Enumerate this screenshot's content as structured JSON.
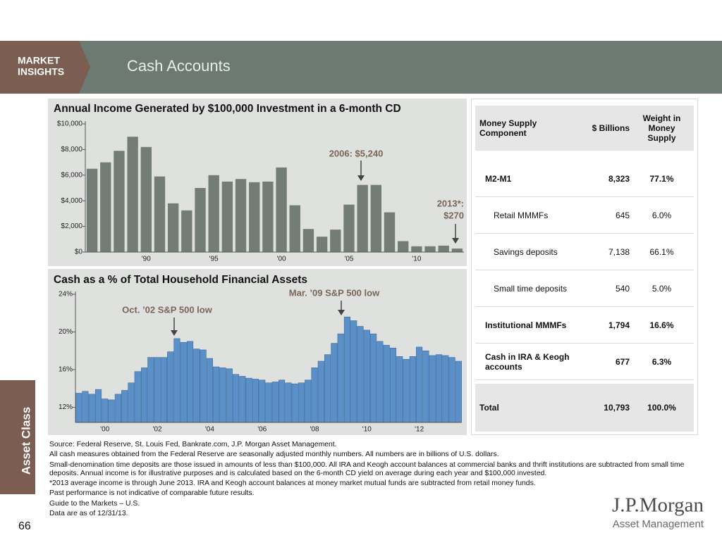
{
  "header": {
    "badge": [
      "MARKET",
      "INSIGHTS"
    ],
    "title": "Cash Accounts"
  },
  "side_tab": "Asset Class",
  "page_number": "66",
  "chart_data": [
    {
      "type": "bar",
      "title": "Annual Income Generated by $100,000 Investment in a 6-month CD",
      "categories": [
        null,
        null,
        null,
        null,
        "'90",
        null,
        null,
        null,
        null,
        "'95",
        null,
        null,
        null,
        null,
        "'00",
        null,
        null,
        null,
        null,
        "'05",
        null,
        null,
        null,
        null,
        "'10",
        null,
        null,
        null
      ],
      "values": [
        6500,
        7000,
        7900,
        9000,
        8200,
        5900,
        3800,
        3250,
        5000,
        6000,
        5500,
        5700,
        5450,
        5500,
        6600,
        3650,
        1800,
        1200,
        1750,
        3700,
        5240,
        5240,
        3100,
        850,
        450,
        450,
        500,
        270
      ],
      "color": "#747c77",
      "ylim": [
        0,
        10000
      ],
      "yticks": [
        {
          "value": 0,
          "label": "$0"
        },
        {
          "value": 2000,
          "label": "$2,000"
        },
        {
          "value": 4000,
          "label": "$4,000"
        },
        {
          "value": 6000,
          "label": "$6,000"
        },
        {
          "value": 8000,
          "label": "$8,000"
        },
        {
          "value": 10000,
          "label": "$10,000"
        }
      ],
      "annotations": [
        "2006: $5,240",
        "2013*:",
        "$270"
      ]
    },
    {
      "type": "bar",
      "title": "Cash as a % of Total Household Financial Assets",
      "categories": [
        null,
        null,
        null,
        null,
        "'00",
        null,
        null,
        null,
        null,
        null,
        null,
        null,
        "'02",
        null,
        null,
        null,
        null,
        null,
        null,
        null,
        "'04",
        null,
        null,
        null,
        null,
        null,
        null,
        null,
        "'06",
        null,
        null,
        null,
        null,
        null,
        null,
        null,
        "'08",
        null,
        null,
        null,
        null,
        null,
        null,
        null,
        "'10",
        null,
        null,
        null,
        null,
        null,
        null,
        null,
        "'12",
        null,
        null,
        null,
        null,
        null,
        null
      ],
      "values": [
        13.5,
        13.7,
        13.4,
        13.9,
        12.9,
        12.8,
        13.4,
        13.8,
        14.6,
        15.8,
        16.2,
        17.3,
        17.3,
        17.3,
        17.9,
        19.3,
        18.9,
        19.0,
        18.2,
        18.1,
        17.2,
        16.3,
        16.2,
        16.1,
        15.5,
        15.3,
        15.1,
        15.0,
        14.9,
        14.6,
        14.7,
        14.9,
        14.6,
        14.5,
        14.6,
        14.9,
        16.2,
        16.9,
        17.6,
        18.8,
        19.8,
        21.6,
        21.2,
        20.6,
        20.2,
        19.8,
        19.0,
        18.6,
        18.3,
        17.4,
        17.1,
        17.4,
        18.4,
        18.0,
        17.5,
        17.6,
        17.5,
        17.3,
        16.9
      ],
      "color": "#5b8fc7",
      "ylim": [
        10.4,
        24
      ],
      "yticks": [
        {
          "value": 12,
          "label": "12%"
        },
        {
          "value": 16,
          "label": "16%"
        },
        {
          "value": 20,
          "label": "20%"
        },
        {
          "value": 24,
          "label": "24%"
        }
      ],
      "annotations": [
        "Oct. ’02 S&P 500 low",
        "Mar. ’09 S&P 500 low"
      ]
    }
  ],
  "table": {
    "columns": [
      "Money Supply Component",
      "$ Billions",
      "Weight in Money Supply"
    ],
    "rows": [
      [
        "M2-M1",
        "8,323",
        "77.1%"
      ],
      [
        "Retail MMMFs",
        "645",
        "6.0%"
      ],
      [
        "Savings deposits",
        "7,138",
        "66.1%"
      ],
      [
        "Small time deposits",
        "540",
        "5.0%"
      ],
      [
        "Institutional MMMFs",
        "1,794",
        "16.6%"
      ],
      [
        "Cash in IRA & Keogh accounts",
        "677",
        "6.3%"
      ]
    ],
    "total": [
      "Total",
      "10,793",
      "100.0%"
    ]
  },
  "footnotes": [
    "Source: Federal Reserve, St. Louis Fed, Bankrate.com, J.P. Morgan Asset Management.",
    "All cash measures obtained from the Federal Reserve are seasonally adjusted monthly numbers. All numbers are in billions of U.S. dollars.",
    "Small-denomination time deposits are those issued in amounts of less than $100,000. All IRA and Keogh account balances at commercial banks and thrift institutions are subtracted from small time deposits. Annual income is for illustrative purposes and is calculated based on the 6-month CD yield on average during each year and $100,000 invested.",
    "*2013 average income is through June 2013. IRA and Keogh account balances at money market mutual funds are subtracted from retail money funds.",
    "Past performance is not indicative of comparable future results.",
    "Guide to the Markets – U.S.",
    "Data are as of 12/31/13."
  ],
  "logo": {
    "name": "J.P.Morgan",
    "subtitle": "Asset Management"
  }
}
